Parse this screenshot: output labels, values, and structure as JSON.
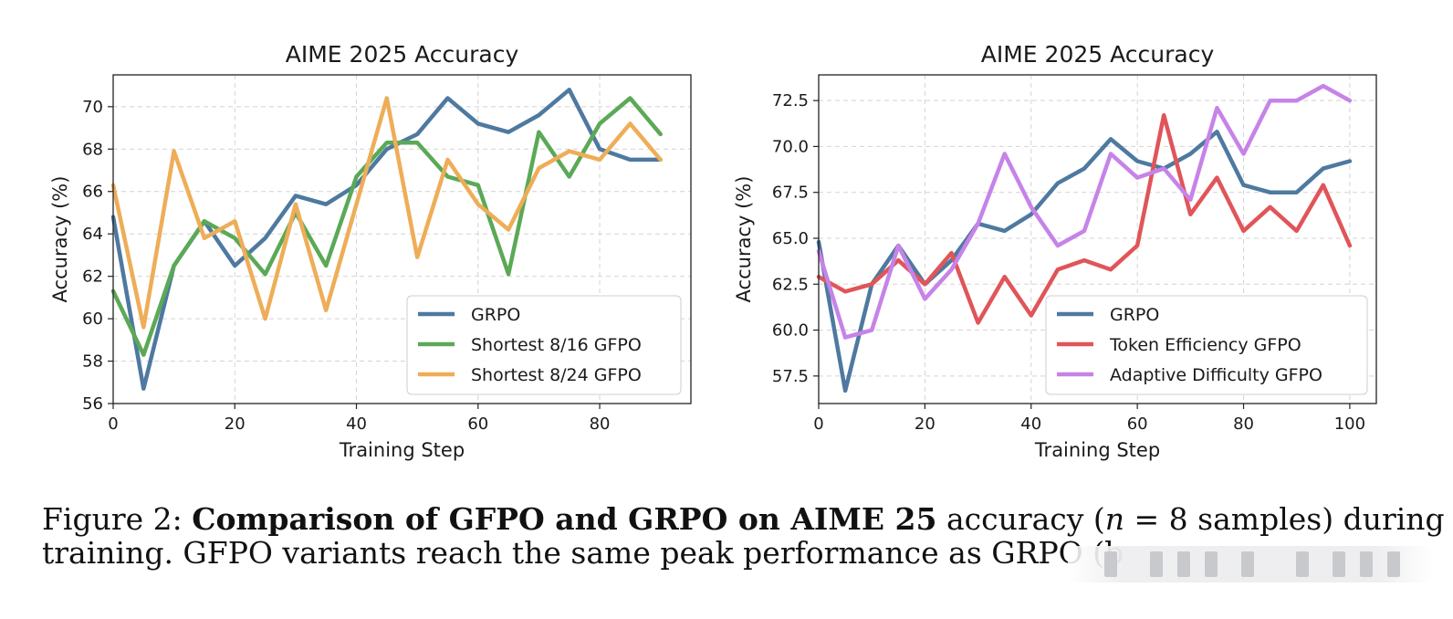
{
  "chart_data": [
    {
      "type": "line",
      "title": "AIME 2025 Accuracy",
      "xlabel": "Training Step",
      "ylabel": "Accuracy (%)",
      "xlim": [
        0,
        95
      ],
      "ylim": [
        56,
        71.5
      ],
      "xticks": [
        0,
        20,
        40,
        60,
        80
      ],
      "yticks": [
        56,
        58,
        60,
        62,
        64,
        66,
        68,
        70
      ],
      "ytick_decimals": 0,
      "grid": true,
      "legend_position": "lower-right",
      "x": [
        0,
        5,
        10,
        15,
        20,
        25,
        30,
        35,
        40,
        45,
        50,
        55,
        60,
        65,
        70,
        75,
        80,
        85,
        90
      ],
      "series": [
        {
          "name": "GRPO",
          "color": "#4e79a0",
          "values": [
            64.8,
            56.7,
            62.5,
            64.6,
            62.5,
            63.8,
            65.8,
            65.4,
            66.3,
            68.0,
            68.7,
            70.4,
            69.2,
            68.8,
            69.6,
            70.8,
            68.0,
            67.5,
            67.5
          ]
        },
        {
          "name": "Shortest 8/16 GFPO",
          "color": "#5ba956",
          "values": [
            61.3,
            58.3,
            62.5,
            64.6,
            63.8,
            62.1,
            65.0,
            62.5,
            66.7,
            68.3,
            68.3,
            66.7,
            66.3,
            62.1,
            68.8,
            66.7,
            69.2,
            70.4,
            68.7
          ]
        },
        {
          "name": "Shortest 8/24 GFPO",
          "color": "#eead58",
          "values": [
            66.3,
            59.6,
            67.9,
            63.8,
            64.6,
            60.0,
            65.4,
            60.4,
            65.4,
            70.4,
            62.9,
            67.5,
            65.4,
            64.2,
            67.1,
            67.9,
            67.5,
            69.2,
            67.5
          ]
        }
      ]
    },
    {
      "type": "line",
      "title": "AIME 2025 Accuracy",
      "xlabel": "Training Step",
      "ylabel": "Accuracy (%)",
      "xlim": [
        0,
        105
      ],
      "ylim": [
        56.0,
        73.9
      ],
      "xticks": [
        0,
        20,
        40,
        60,
        80,
        100
      ],
      "yticks": [
        57.5,
        60.0,
        62.5,
        65.0,
        67.5,
        70.0,
        72.5
      ],
      "ytick_decimals": 1,
      "grid": true,
      "legend_position": "lower-right",
      "x": [
        0,
        5,
        10,
        15,
        20,
        25,
        30,
        35,
        40,
        45,
        50,
        55,
        60,
        65,
        70,
        75,
        80,
        85,
        90,
        95,
        100
      ],
      "series": [
        {
          "name": "GRPO",
          "color": "#4e79a0",
          "values": [
            64.8,
            56.7,
            62.5,
            64.6,
            62.5,
            63.8,
            65.8,
            65.4,
            66.3,
            68.0,
            68.8,
            70.4,
            69.2,
            68.8,
            69.6,
            70.8,
            67.9,
            67.5,
            67.5,
            68.8,
            69.2
          ]
        },
        {
          "name": "Token Efficiency GFPO",
          "color": "#e05559",
          "values": [
            62.9,
            62.1,
            62.5,
            63.8,
            62.5,
            64.2,
            60.4,
            62.9,
            60.8,
            63.3,
            63.8,
            63.3,
            64.6,
            71.7,
            66.3,
            68.3,
            65.4,
            66.7,
            65.4,
            67.9,
            64.6
          ]
        },
        {
          "name": "Adaptive Difficulty GFPO",
          "color": "#c683e8",
          "values": [
            64.3,
            59.6,
            60.0,
            64.6,
            61.7,
            63.3,
            65.8,
            69.6,
            66.7,
            64.6,
            65.4,
            69.6,
            68.3,
            68.8,
            67.1,
            72.1,
            69.6,
            72.5,
            72.5,
            73.3,
            72.5
          ]
        }
      ]
    }
  ],
  "caption": {
    "prefix": "Figure 2: ",
    "bold": "Comparison of GFPO and GRPO on AIME 25",
    "after_bold": " accuracy (",
    "math_var": "n",
    "math_rest": " = 8 samples) during",
    "line2": "training. GFPO variants reach the same peak performance as GRPO (b"
  }
}
